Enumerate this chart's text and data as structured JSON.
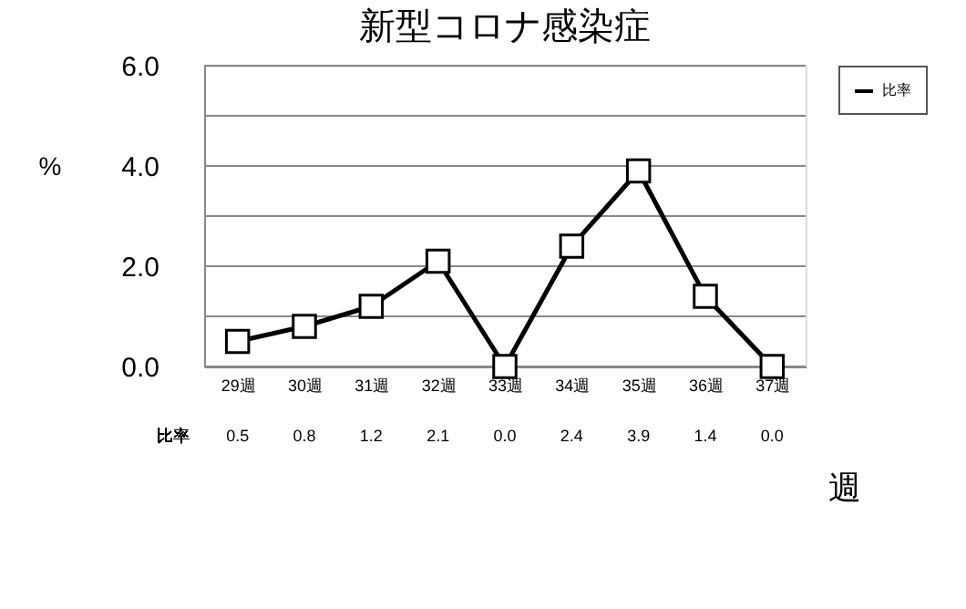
{
  "chart_data": {
    "type": "line",
    "title": "新型コロナ感染症",
    "xlabel": "週",
    "ylabel": "%",
    "categories": [
      "29週",
      "30週",
      "31週",
      "32週",
      "33週",
      "34週",
      "35週",
      "36週",
      "37週"
    ],
    "series": [
      {
        "name": "比率",
        "color": "#000000",
        "values": [
          0.5,
          0.8,
          1.2,
          2.1,
          0.0,
          2.4,
          3.9,
          1.4,
          0.0
        ],
        "value_labels": [
          "0.5",
          "0.8",
          "1.2",
          "2.1",
          "0.0",
          "2.4",
          "3.9",
          "1.4",
          "0.0"
        ]
      }
    ],
    "ylim": [
      0,
      6
    ],
    "yticks": [
      {
        "value": 0,
        "label": "0.0"
      },
      {
        "value": 1,
        "label": null
      },
      {
        "value": 2,
        "label": "2.0"
      },
      {
        "value": 3,
        "label": null
      },
      {
        "value": 4,
        "label": "4.0"
      },
      {
        "value": 5,
        "label": null
      },
      {
        "value": 6,
        "label": "6.0"
      }
    ],
    "grid": "y",
    "legend": "right",
    "marker": "square",
    "line_style": "solid"
  }
}
